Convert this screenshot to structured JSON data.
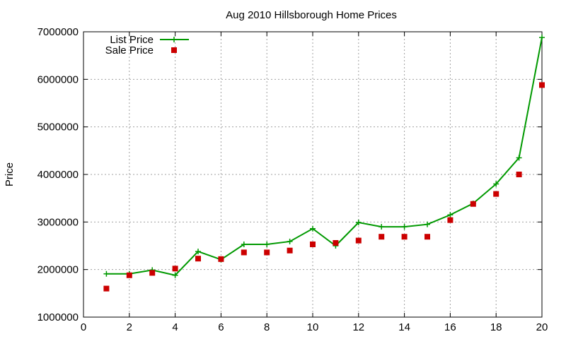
{
  "chart_data": {
    "type": "line",
    "title": "Aug 2010 Hillsborough Home Prices",
    "xlabel": "",
    "ylabel": "Price",
    "xlim": [
      0,
      20
    ],
    "ylim": [
      1000000,
      7000000
    ],
    "xticks": [
      0,
      2,
      4,
      6,
      8,
      10,
      12,
      14,
      16,
      18,
      20
    ],
    "yticks": [
      1000000,
      2000000,
      3000000,
      4000000,
      5000000,
      6000000,
      7000000
    ],
    "grid": true,
    "legend_position": "top-left",
    "x": [
      1,
      2,
      3,
      4,
      5,
      6,
      7,
      8,
      9,
      10,
      11,
      12,
      13,
      14,
      15,
      16,
      17,
      18,
      19,
      20
    ],
    "series": [
      {
        "name": "List Price",
        "style": "line-plus",
        "color": "#009900",
        "values": [
          1910000,
          1910000,
          1990000,
          1880000,
          2380000,
          2210000,
          2530000,
          2530000,
          2590000,
          2860000,
          2500000,
          2990000,
          2900000,
          2900000,
          2950000,
          3150000,
          3390000,
          3800000,
          4350000,
          6880000
        ]
      },
      {
        "name": "Sale Price",
        "style": "square",
        "color": "#cc0000",
        "values": [
          1600000,
          1880000,
          1930000,
          2020000,
          2230000,
          2220000,
          2360000,
          2360000,
          2400000,
          2530000,
          2560000,
          2610000,
          2690000,
          2690000,
          2690000,
          3040000,
          3380000,
          3590000,
          4000000,
          5880000
        ]
      }
    ]
  }
}
